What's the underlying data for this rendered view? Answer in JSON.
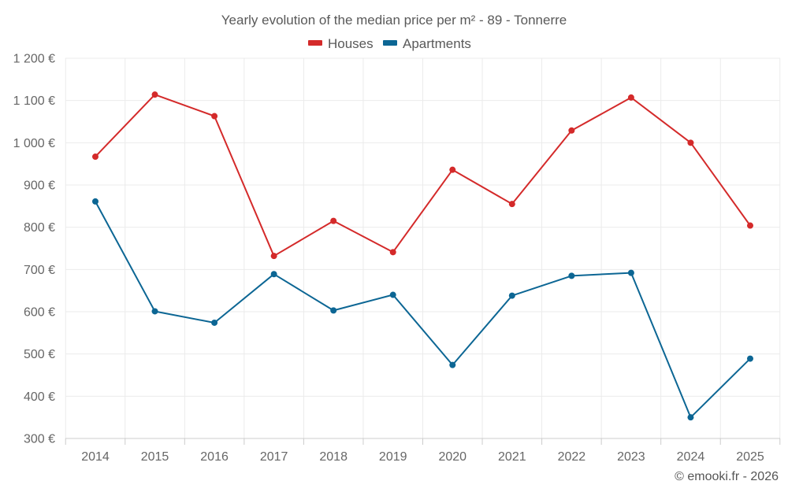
{
  "chart_data": {
    "type": "line",
    "title": "Yearly evolution of the median price per m² - 89 - Tonnerre",
    "categories": [
      "2014",
      "2015",
      "2016",
      "2017",
      "2018",
      "2019",
      "2020",
      "2021",
      "2022",
      "2023",
      "2024",
      "2025"
    ],
    "series": [
      {
        "name": "Houses",
        "color": "#d42a2a",
        "values": [
          967,
          1114,
          1063,
          732,
          815,
          741,
          936,
          855,
          1029,
          1107,
          1000,
          804
        ]
      },
      {
        "name": "Apartments",
        "color": "#0c6694",
        "values": [
          861,
          601,
          574,
          689,
          603,
          640,
          474,
          638,
          685,
          692,
          350,
          489
        ]
      }
    ],
    "ylim": [
      300,
      1200
    ],
    "yticks": [
      300,
      400,
      500,
      600,
      700,
      800,
      900,
      1000,
      1100,
      1200
    ],
    "ytick_labels": [
      "300 €",
      "400 €",
      "500 €",
      "600 €",
      "700 €",
      "800 €",
      "900 €",
      "1 000 €",
      "1 100 €",
      "1 200 €"
    ],
    "xlabel": "",
    "ylabel": "",
    "grid": true,
    "legend_position": "top-center"
  },
  "credit": "© emooki.fr - 2026"
}
